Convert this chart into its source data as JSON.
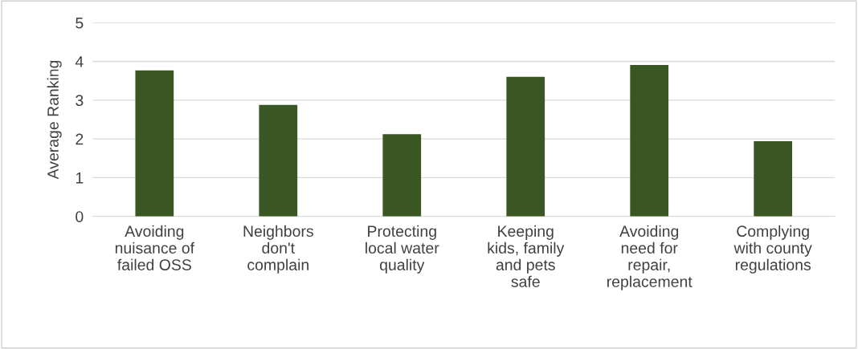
{
  "chart_data": {
    "type": "bar",
    "ylabel": "Average Ranking",
    "categories": [
      "Avoiding nuisance of failed OSS",
      "Neighbors don't complain",
      "Protecting local water quality",
      "Keeping kids, family and pets safe",
      "Avoiding need for repair, replacement",
      "Complying with county regulations"
    ],
    "values": [
      3.77,
      2.88,
      2.12,
      3.6,
      3.91,
      1.94
    ],
    "color": "#3a5723",
    "ylim": [
      0,
      5
    ],
    "yticks": [
      0,
      1,
      2,
      3,
      4,
      5
    ],
    "grid": "y"
  }
}
